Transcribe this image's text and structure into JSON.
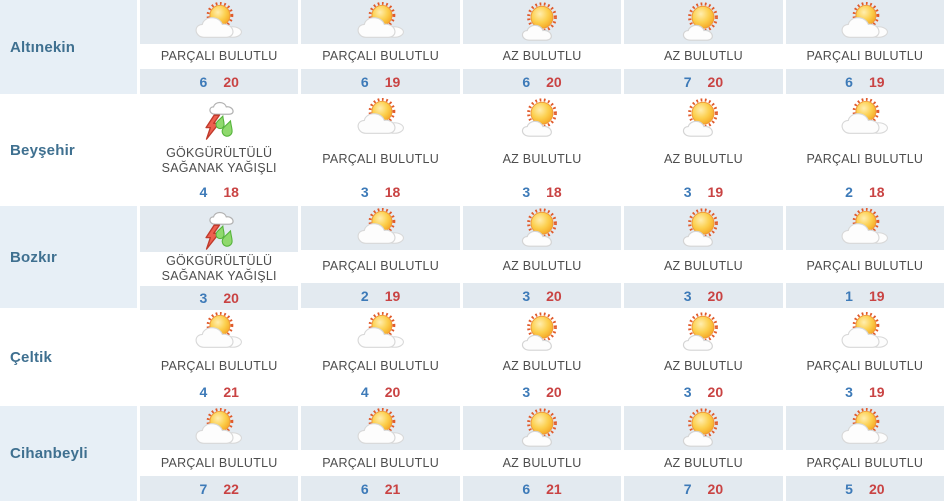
{
  "weather_table": {
    "rows": [
      {
        "city": "Altınekin",
        "forecasts": [
          {
            "icon": "sun-behind-cloud-icon",
            "condition": "PARÇALI BULUTLU",
            "min": "6",
            "max": "20"
          },
          {
            "icon": "sun-behind-cloud-icon",
            "condition": "PARÇALI BULUTLU",
            "min": "6",
            "max": "19"
          },
          {
            "icon": "sun-small-cloud-icon",
            "condition": "AZ BULUTLU",
            "min": "6",
            "max": "20"
          },
          {
            "icon": "sun-small-cloud-icon",
            "condition": "AZ BULUTLU",
            "min": "7",
            "max": "20"
          },
          {
            "icon": "sun-behind-cloud-icon",
            "condition": "PARÇALI BULUTLU",
            "min": "6",
            "max": "19"
          }
        ]
      },
      {
        "city": "Beyşehir",
        "forecasts": [
          {
            "icon": "thunderstorm-rain-icon",
            "condition": "GÖKGÜRÜLTÜLÜ SAĞANAK YAĞIŞLI",
            "min": "4",
            "max": "18"
          },
          {
            "icon": "sun-behind-cloud-icon",
            "condition": "PARÇALI BULUTLU",
            "min": "3",
            "max": "18"
          },
          {
            "icon": "sun-small-cloud-icon",
            "condition": "AZ BULUTLU",
            "min": "3",
            "max": "18"
          },
          {
            "icon": "sun-small-cloud-icon",
            "condition": "AZ BULUTLU",
            "min": "3",
            "max": "19"
          },
          {
            "icon": "sun-behind-cloud-icon",
            "condition": "PARÇALI BULUTLU",
            "min": "2",
            "max": "18"
          }
        ]
      },
      {
        "city": "Bozkır",
        "forecasts": [
          {
            "icon": "thunderstorm-rain-icon",
            "condition": "GÖKGÜRÜLTÜLÜ SAĞANAK YAĞIŞLI",
            "min": "3",
            "max": "20"
          },
          {
            "icon": "sun-behind-cloud-icon",
            "condition": "PARÇALI BULUTLU",
            "min": "2",
            "max": "19"
          },
          {
            "icon": "sun-small-cloud-icon",
            "condition": "AZ BULUTLU",
            "min": "3",
            "max": "20"
          },
          {
            "icon": "sun-small-cloud-icon",
            "condition": "AZ BULUTLU",
            "min": "3",
            "max": "20"
          },
          {
            "icon": "sun-behind-cloud-icon",
            "condition": "PARÇALI BULUTLU",
            "min": "1",
            "max": "19"
          }
        ]
      },
      {
        "city": "Çeltik",
        "forecasts": [
          {
            "icon": "sun-behind-cloud-icon",
            "condition": "PARÇALI BULUTLU",
            "min": "4",
            "max": "21"
          },
          {
            "icon": "sun-behind-cloud-icon",
            "condition": "PARÇALI BULUTLU",
            "min": "4",
            "max": "20"
          },
          {
            "icon": "sun-small-cloud-icon",
            "condition": "AZ BULUTLU",
            "min": "3",
            "max": "20"
          },
          {
            "icon": "sun-small-cloud-icon",
            "condition": "AZ BULUTLU",
            "min": "3",
            "max": "20"
          },
          {
            "icon": "sun-behind-cloud-icon",
            "condition": "PARÇALI BULUTLU",
            "min": "3",
            "max": "19"
          }
        ]
      },
      {
        "city": "Cihanbeyli",
        "forecasts": [
          {
            "icon": "sun-behind-cloud-icon",
            "condition": "PARÇALI BULUTLU",
            "min": "7",
            "max": "22"
          },
          {
            "icon": "sun-behind-cloud-icon",
            "condition": "PARÇALI BULUTLU",
            "min": "6",
            "max": "21"
          },
          {
            "icon": "sun-small-cloud-icon",
            "condition": "AZ BULUTLU",
            "min": "6",
            "max": "21"
          },
          {
            "icon": "sun-small-cloud-icon",
            "condition": "AZ BULUTLU",
            "min": "7",
            "max": "20"
          },
          {
            "icon": "sun-behind-cloud-icon",
            "condition": "PARÇALI BULUTLU",
            "min": "5",
            "max": "20"
          }
        ]
      }
    ]
  },
  "colors": {
    "city_text": "#3f7090",
    "condition_text": "#4d4d4d",
    "min_temp": "#3d7ab8",
    "max_temp": "#c94343",
    "alt_row_city_bg": "#e7eff6",
    "alt_row_cell_bg": "#e3eaf0"
  }
}
